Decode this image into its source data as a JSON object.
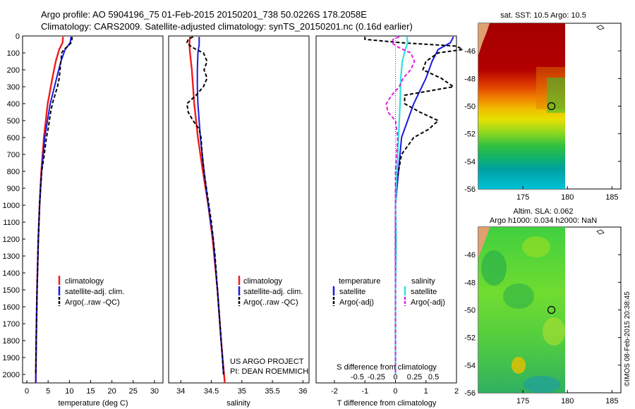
{
  "header": {
    "line1": "Argo profile: AO 5904196_75 01-Feb-2015 20150201_738 50.0226S 178.2058E",
    "line2": "Climatology: CARS2009. Satellite-adjusted climatology: synTS_20150201.nc (0.16d earlier)"
  },
  "colors": {
    "climatology": "#ee1c1c",
    "satellite": "#1a1adf",
    "argo": "#000000",
    "sal_satellite": "#2ee0e0",
    "sal_argo": "#e020e0"
  },
  "chart_data": [
    {
      "type": "line",
      "id": "temperature",
      "xlabel": "temperature (deg C)",
      "ylim": [
        2050,
        0
      ],
      "xlim": [
        -1,
        32
      ],
      "xticks": [
        "0",
        "5",
        "10",
        "15",
        "20",
        "25",
        "30"
      ],
      "yticks": [
        "0",
        "100",
        "200",
        "300",
        "400",
        "500",
        "600",
        "700",
        "800",
        "900",
        "1000",
        "1100",
        "1200",
        "1300",
        "1400",
        "1500",
        "1600",
        "1700",
        "1800",
        "1900",
        "2000"
      ],
      "legend": [
        "climatology",
        "satellite-adj. clim.",
        "Argo(..raw -QC)"
      ],
      "series": [
        {
          "name": "climatology",
          "depth": [
            5,
            40,
            80,
            150,
            250,
            400,
            600,
            800,
            1000,
            1200,
            1500,
            1800,
            2050
          ],
          "values": [
            8.5,
            8.4,
            7.6,
            6.8,
            6.0,
            4.9,
            4.0,
            3.4,
            3.0,
            2.7,
            2.4,
            2.2,
            2.1
          ]
        },
        {
          "name": "satellite-adj. clim.",
          "depth": [
            5,
            40,
            80,
            150,
            250,
            400,
            600,
            800,
            1000,
            1200,
            1500,
            1800,
            2050
          ],
          "values": [
            10.4,
            10.2,
            9.0,
            8.0,
            7.0,
            5.5,
            4.2,
            3.5,
            3.0,
            2.7,
            2.4,
            2.2,
            2.1
          ]
        },
        {
          "name": "Argo(..raw -QC)",
          "depth": [
            5,
            20,
            40,
            60,
            80,
            100,
            150,
            200,
            250,
            300,
            350,
            400,
            450,
            500,
            550,
            600,
            700,
            800,
            900,
            1000,
            1200,
            1500,
            1800,
            2000
          ],
          "values": [
            10.6,
            10.6,
            10.4,
            9.7,
            8.7,
            8.2,
            8.0,
            7.8,
            7.6,
            7.2,
            6.6,
            6.0,
            5.6,
            5.3,
            5.0,
            4.6,
            4.1,
            3.5,
            3.2,
            3.0,
            2.7,
            2.4,
            2.2,
            2.1
          ]
        }
      ]
    },
    {
      "type": "line",
      "id": "salinity",
      "xlabel": "salinity",
      "ylim": [
        2050,
        0
      ],
      "xlim": [
        33.8,
        36.1
      ],
      "xticks": [
        "34",
        "34.5",
        "35",
        "35.5",
        "36"
      ],
      "legend": [
        "climatology",
        "satellite-adj. clim.",
        "Argo(..raw -QC)"
      ],
      "annotation": [
        "US ARGO PROJECT",
        "PI: DEAN ROEMMICH"
      ],
      "series": [
        {
          "name": "climatology",
          "depth": [
            5,
            50,
            100,
            200,
            300,
            400,
            600,
            800,
            1000,
            1200,
            1500,
            1800,
            2050
          ],
          "values": [
            34.15,
            34.14,
            34.15,
            34.18,
            34.2,
            34.22,
            34.28,
            34.36,
            34.45,
            34.52,
            34.6,
            34.66,
            34.72
          ]
        },
        {
          "name": "satellite-adj. clim.",
          "depth": [
            5,
            50,
            100,
            200,
            300,
            400,
            600,
            800,
            1000,
            1200,
            1500,
            1800,
            2000
          ],
          "values": [
            34.3,
            34.3,
            34.28,
            34.27,
            34.27,
            34.28,
            34.32,
            34.38,
            34.45,
            34.53,
            34.6,
            34.66,
            34.7
          ]
        },
        {
          "name": "Argo(..raw -QC)",
          "depth": [
            5,
            20,
            40,
            60,
            80,
            100,
            150,
            200,
            250,
            300,
            350,
            400,
            450,
            500,
            550,
            600,
            700,
            800,
            900,
            1000,
            1100,
            1200,
            1300,
            1500,
            1700,
            2000
          ],
          "values": [
            34.2,
            34.12,
            34.1,
            34.16,
            34.25,
            34.37,
            34.43,
            34.38,
            34.43,
            34.37,
            34.25,
            34.1,
            34.12,
            34.2,
            34.3,
            34.33,
            34.35,
            34.38,
            34.42,
            34.46,
            34.5,
            34.53,
            34.56,
            34.6,
            34.64,
            34.7
          ]
        }
      ]
    },
    {
      "type": "line",
      "id": "differences",
      "xlabel": "T difference from climatology",
      "xlabel2": "S difference from climatology",
      "ylim": [
        2050,
        0
      ],
      "xlim": [
        -2.6,
        2.0
      ],
      "xticks": [
        "-2",
        "-1",
        "0",
        "1",
        "2"
      ],
      "sticks": [
        "-0.5",
        "-0.25",
        "0",
        "0.25",
        "0.5"
      ],
      "legend_headers": [
        "temperature",
        "salinity"
      ],
      "legend": [
        "satellite",
        "Argo(-adj)",
        "satellite",
        "Argo(-adj)"
      ],
      "series": [
        {
          "name": "T satellite",
          "depth": [
            5,
            40,
            80,
            150,
            250,
            400,
            600,
            800,
            1000,
            1200,
            1500,
            1800,
            2000
          ],
          "values": [
            1.9,
            1.8,
            1.4,
            1.2,
            1.0,
            0.6,
            0.2,
            0.1,
            0.0,
            0.0,
            0.0,
            0.0,
            0.0
          ]
        },
        {
          "name": "T Argo(-adj)",
          "depth": [
            5,
            20,
            40,
            60,
            80,
            100,
            150,
            200,
            250,
            300,
            350,
            400,
            450,
            500,
            550,
            600,
            650,
            700,
            800,
            900,
            1000,
            1200,
            1500,
            1800,
            2000
          ],
          "values": [
            -1.0,
            -1.0,
            0.2,
            2.0,
            2.2,
            1.4,
            1.0,
            0.9,
            1.5,
            1.9,
            0.3,
            0.3,
            0.8,
            1.4,
            1.1,
            0.6,
            0.4,
            0.2,
            0.1,
            0.0,
            0.0,
            0.0,
            0.0,
            0.0,
            0.0
          ]
        },
        {
          "name": "S satellite",
          "depth": [
            5,
            40,
            80,
            150,
            250,
            400,
            600,
            800,
            1000,
            1200,
            1500,
            1800,
            2000
          ],
          "values": [
            0.15,
            0.16,
            0.13,
            0.09,
            0.07,
            0.06,
            0.04,
            0.02,
            0.0,
            0.01,
            0.0,
            0.0,
            0.0
          ]
        },
        {
          "name": "S Argo(-adj)",
          "depth": [
            5,
            20,
            40,
            60,
            80,
            100,
            150,
            200,
            250,
            300,
            350,
            400,
            450,
            500,
            600,
            800,
            1000,
            1200,
            1500,
            2000
          ],
          "values": [
            0.05,
            -0.03,
            -0.05,
            0.01,
            0.1,
            0.2,
            0.25,
            0.2,
            0.1,
            0.05,
            -0.05,
            -0.12,
            -0.1,
            0.0,
            0.03,
            0.0,
            0.0,
            0.0,
            0.0,
            0.0
          ]
        }
      ]
    },
    {
      "type": "heatmap",
      "id": "sst_map",
      "title": "sat. SST: 10.5 Argo: 10.5",
      "xlim": [
        170,
        186
      ],
      "ylim": [
        -56,
        -44
      ],
      "xticks": [
        "175",
        "180",
        "185"
      ],
      "yticks": [
        "-46",
        "-48",
        "-50",
        "-52",
        "-54",
        "-56"
      ],
      "marker": [
        178.2,
        -50.0
      ]
    },
    {
      "type": "heatmap",
      "id": "sla_map",
      "title": "Altim. SLA: 0.062",
      "subtitle": "Argo h1000: 0.034 h2000: NaN",
      "xlim": [
        170,
        186
      ],
      "ylim": [
        -56,
        -44
      ],
      "xticks": [
        "175",
        "180",
        "185"
      ],
      "yticks": [
        "-46",
        "-48",
        "-50",
        "-52",
        "-54",
        "-56"
      ],
      "marker": [
        178.2,
        -50.0
      ]
    }
  ],
  "credit": "©IMOS 08-Feb-2015 20:38:45"
}
